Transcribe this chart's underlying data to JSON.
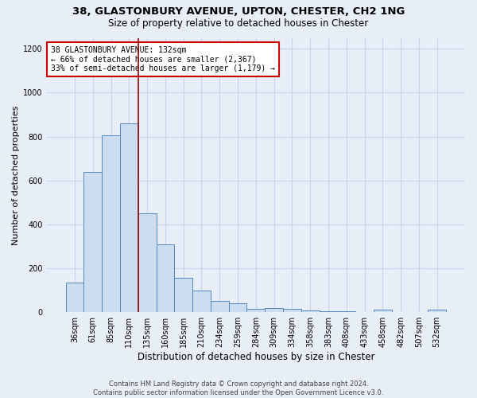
{
  "title_line1": "38, GLASTONBURY AVENUE, UPTON, CHESTER, CH2 1NG",
  "title_line2": "Size of property relative to detached houses in Chester",
  "xlabel": "Distribution of detached houses by size in Chester",
  "ylabel": "Number of detached properties",
  "footer": "Contains HM Land Registry data © Crown copyright and database right 2024.\nContains public sector information licensed under the Open Government Licence v3.0.",
  "categories": [
    "36sqm",
    "61sqm",
    "85sqm",
    "110sqm",
    "135sqm",
    "160sqm",
    "185sqm",
    "210sqm",
    "234sqm",
    "259sqm",
    "284sqm",
    "309sqm",
    "334sqm",
    "358sqm",
    "383sqm",
    "408sqm",
    "433sqm",
    "458sqm",
    "482sqm",
    "507sqm",
    "532sqm"
  ],
  "values": [
    135,
    640,
    805,
    860,
    450,
    310,
    155,
    100,
    50,
    40,
    15,
    20,
    15,
    8,
    3,
    5,
    2,
    10,
    0,
    0,
    10
  ],
  "bar_color": "#ccddf0",
  "bar_edge_color": "#5588bb",
  "grid_color": "#c8d4e8",
  "background_color": "#e8eef8",
  "vline_color": "#990000",
  "vline_x_index": 3.5,
  "annotation_text": "38 GLASTONBURY AVENUE: 132sqm\n← 66% of detached houses are smaller (2,367)\n33% of semi-detached houses are larger (1,179) →",
  "annotation_box_color": "#ffffff",
  "annotation_box_edge_color": "#cc0000",
  "ylim": [
    0,
    1250
  ],
  "yticks": [
    0,
    200,
    400,
    600,
    800,
    1000,
    1200
  ],
  "title1_fontsize": 9.5,
  "title2_fontsize": 8.5,
  "ylabel_fontsize": 8,
  "xlabel_fontsize": 8.5,
  "tick_fontsize": 7,
  "annot_fontsize": 7,
  "footer_fontsize": 6
}
